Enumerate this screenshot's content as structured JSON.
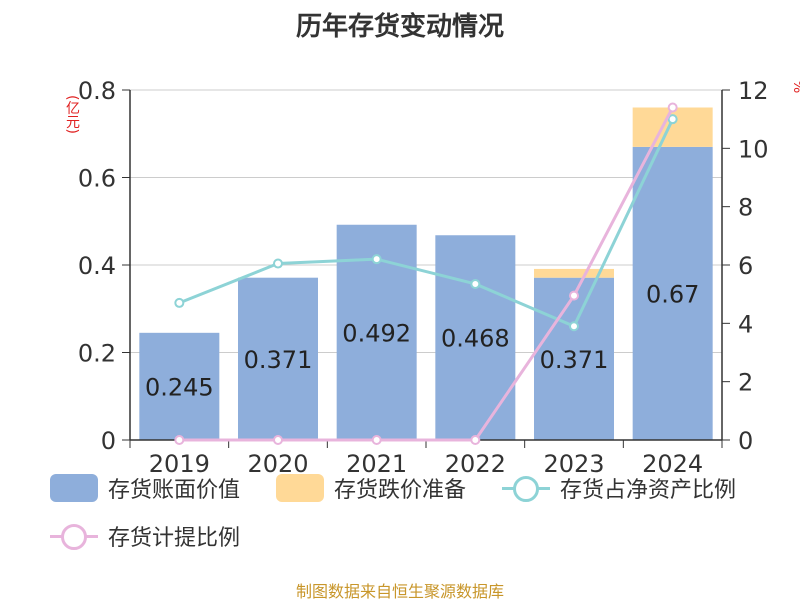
{
  "title": "历年存货变动情况",
  "unit_left": "(亿元)",
  "unit_right": "%",
  "source": "制图数据来自恒生聚源数据库",
  "colors": {
    "book_value": "#8eaedb",
    "impairment": "#ffd997",
    "ratio_net_assets": "#8dd3d6",
    "provision_ratio": "#e8b4dc"
  },
  "chart_data": {
    "type": "bar",
    "categories": [
      "2019",
      "2020",
      "2021",
      "2022",
      "2023",
      "2024"
    ],
    "y_left": {
      "ylim": [
        0,
        0.8
      ],
      "ticks": [
        "0",
        "0.2",
        "0.4",
        "0.6",
        "0.8"
      ]
    },
    "y_right": {
      "ylim": [
        0,
        12
      ],
      "ticks": [
        "0",
        "2",
        "4",
        "6",
        "8",
        "10",
        "12"
      ]
    },
    "grid": true,
    "legend_position": "bottom",
    "series": [
      {
        "name": "存货账面价值",
        "kind": "bar",
        "axis": "left",
        "values": [
          0.245,
          0.371,
          0.492,
          0.468,
          0.371,
          0.67
        ],
        "labels": [
          "0.245",
          "0.371",
          "0.492",
          "0.468",
          "0.371",
          "0.67"
        ]
      },
      {
        "name": "存货跌价准备",
        "kind": "bar-stack",
        "axis": "left",
        "values": [
          0,
          0,
          0,
          0,
          0.02,
          0.09
        ]
      },
      {
        "name": "存货占净资产比例",
        "kind": "line",
        "axis": "right",
        "values": [
          4.7,
          6.05,
          6.2,
          5.35,
          3.9,
          11.0
        ]
      },
      {
        "name": "存货计提比例",
        "kind": "line",
        "axis": "right",
        "values": [
          0,
          0,
          0,
          0,
          4.95,
          11.4
        ]
      }
    ]
  }
}
